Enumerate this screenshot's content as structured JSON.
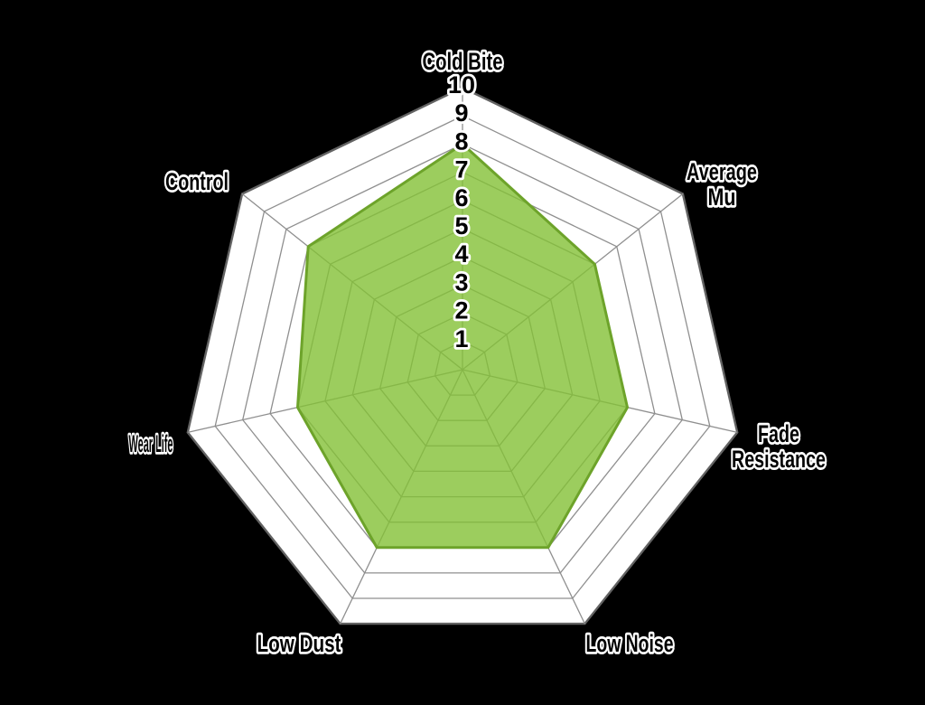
{
  "chart_data": {
    "type": "radar",
    "title": "",
    "categories": [
      "Cold Bite",
      "Average Mu",
      "Fade Resistance",
      "Low Noise",
      "Low Dust",
      "Wear Life",
      "Control"
    ],
    "axis_label_lines": [
      [
        "Cold Bite"
      ],
      [
        "Average",
        "Mu"
      ],
      [
        "Fade",
        "Resistance"
      ],
      [
        "Low Noise"
      ],
      [
        "Low Dust"
      ],
      [
        "Wear Life"
      ],
      [
        "Control"
      ]
    ],
    "series": [
      {
        "values": [
          8,
          6,
          6,
          7,
          7,
          6,
          7
        ]
      }
    ],
    "scale": {
      "min": 0,
      "max": 10,
      "step": 1,
      "tick_labels": [
        "1",
        "2",
        "3",
        "4",
        "5",
        "6",
        "7",
        "8",
        "9",
        "10"
      ]
    },
    "grid": {
      "rings": 10,
      "sides": 7,
      "shape": "polygon",
      "grid_on": true
    },
    "legend_position": "none",
    "colors": {
      "background": "#000000",
      "plot_fill": "#ffffff",
      "grid_line": "#8f8f8f",
      "outer_line": "#636363",
      "series_fill": "#83c036",
      "series_fill_opacity": "0.8",
      "series_stroke": "#6da32a",
      "label_text": "#000000",
      "label_halo": "#ffffff"
    }
  }
}
